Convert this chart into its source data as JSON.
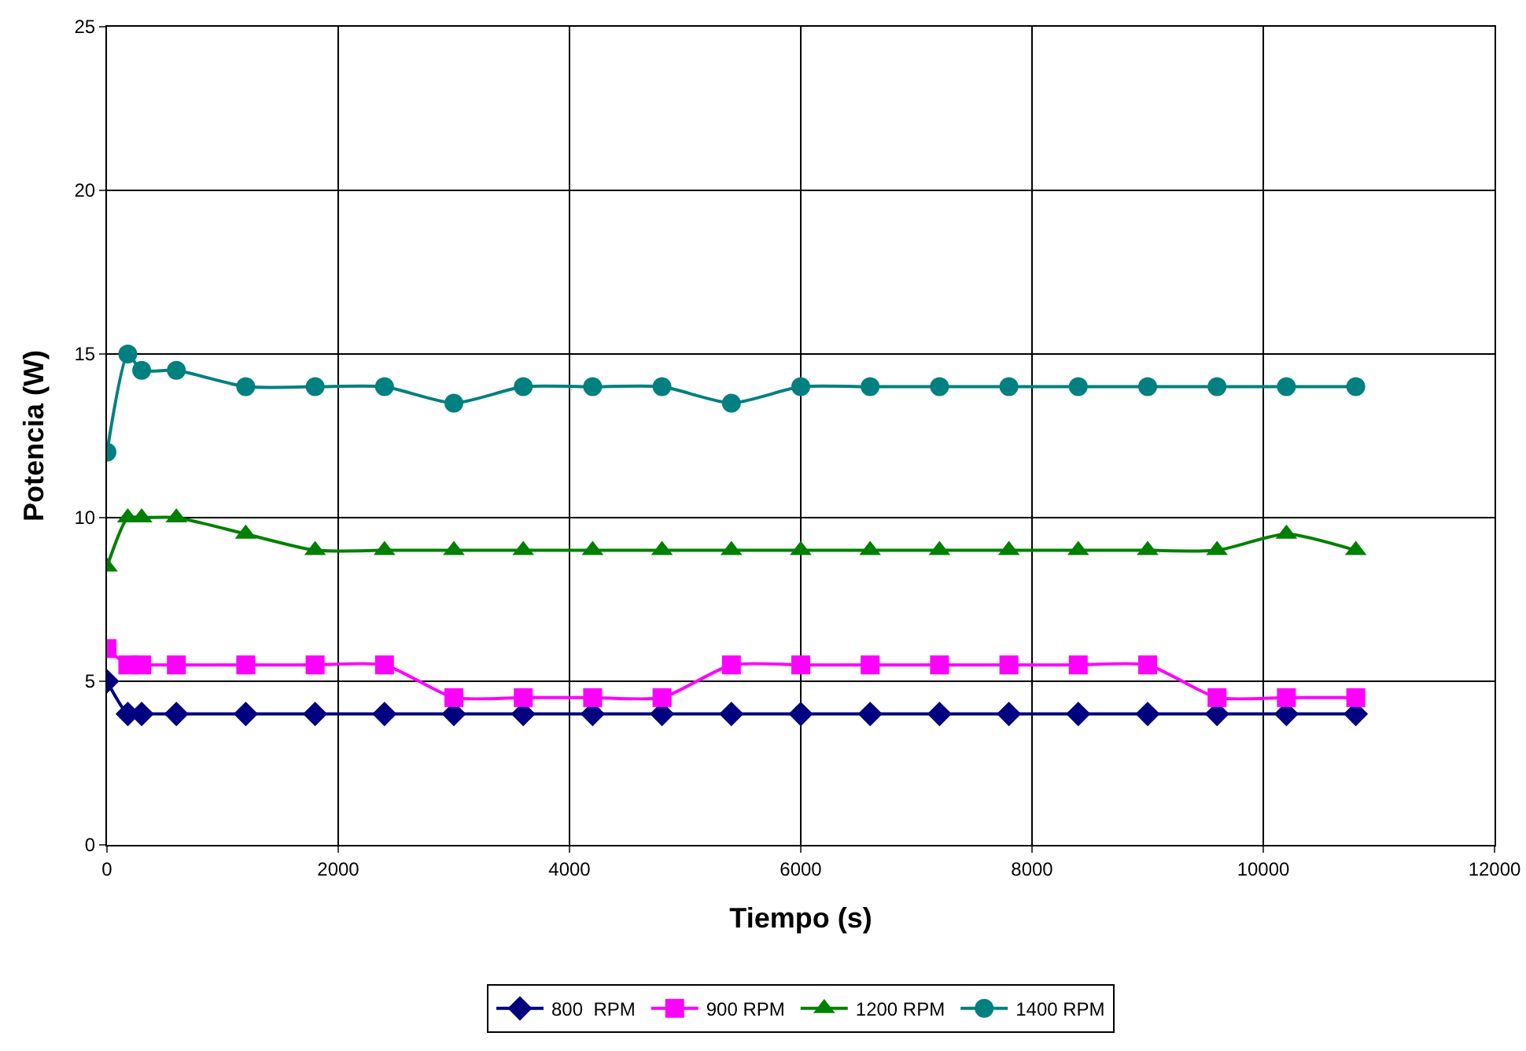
{
  "chart_data": {
    "type": "line",
    "xlabel": "Tiempo (s)",
    "ylabel": "Potencia (W)",
    "x": [
      0,
      180,
      300,
      600,
      1200,
      1800,
      2400,
      3000,
      3600,
      4200,
      4800,
      5400,
      6000,
      6600,
      7200,
      7800,
      8400,
      9000,
      9600,
      10200,
      10800
    ],
    "xlim": [
      0,
      12000
    ],
    "xticks": [
      0,
      2000,
      4000,
      6000,
      8000,
      10000,
      12000
    ],
    "ylim": [
      0,
      25
    ],
    "yticks": [
      0,
      5,
      10,
      15,
      20,
      25
    ],
    "grid": true,
    "legend": "bottom",
    "line_style": "solid",
    "series": [
      {
        "name": "800  RPM",
        "color": "#000080",
        "marker": "diamond",
        "values": [
          5,
          4,
          4,
          4,
          4,
          4,
          4,
          4,
          4,
          4,
          4,
          4,
          4,
          4,
          4,
          4,
          4,
          4,
          4,
          4,
          4
        ]
      },
      {
        "name": "900 RPM",
        "color": "#ff00ff",
        "marker": "square",
        "values": [
          6,
          5.5,
          5.5,
          5.5,
          5.5,
          5.5,
          5.5,
          4.5,
          4.5,
          4.5,
          4.5,
          5.5,
          5.5,
          5.5,
          5.5,
          5.5,
          5.5,
          5.5,
          4.5,
          4.5,
          4.5
        ]
      },
      {
        "name": "1200 RPM",
        "color": "#008000",
        "marker": "triangle",
        "values": [
          8.5,
          10,
          10,
          10,
          9.5,
          9,
          9,
          9,
          9,
          9,
          9,
          9,
          9,
          9,
          9,
          9,
          9,
          9,
          9,
          9.5,
          9
        ]
      },
      {
        "name": "1400 RPM",
        "color": "#008080",
        "marker": "circle",
        "values": [
          12,
          15,
          14.5,
          14.5,
          14,
          14,
          14,
          13.5,
          14,
          14,
          14,
          13.5,
          14,
          14,
          14,
          14,
          14,
          14,
          14,
          14,
          14
        ]
      }
    ]
  }
}
